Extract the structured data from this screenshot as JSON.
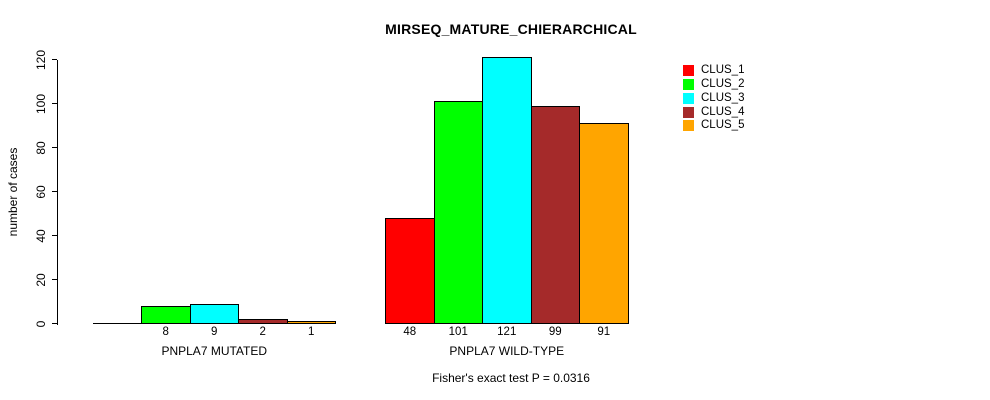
{
  "page": {
    "background": "#ffffff"
  },
  "chart_data": {
    "type": "bar",
    "title": "MIRSEQ_MATURE_CHIERARCHICAL",
    "ylabel": "number of cases",
    "xlabel": "",
    "ylim": [
      0,
      120
    ],
    "yticks": [
      0,
      20,
      40,
      60,
      80,
      100,
      120
    ],
    "grid": false,
    "legend_position": "right",
    "series": [
      {
        "name": "CLUS_1",
        "color": "#FF0000"
      },
      {
        "name": "CLUS_2",
        "color": "#00FF00"
      },
      {
        "name": "CLUS_3",
        "color": "#00FFFF"
      },
      {
        "name": "CLUS_4",
        "color": "#A52A2A"
      },
      {
        "name": "CLUS_5",
        "color": "#FFA500"
      }
    ],
    "groups": [
      {
        "label": "PNPLA7 MUTATED",
        "values": [
          0,
          8,
          9,
          2,
          1
        ],
        "bar_labels": [
          "",
          "8",
          "9",
          "2",
          "1"
        ]
      },
      {
        "label": "PNPLA7 WILD-TYPE",
        "values": [
          48,
          101,
          121,
          99,
          91
        ],
        "bar_labels": [
          "48",
          "101",
          "121",
          "99",
          "91"
        ]
      }
    ],
    "annotation": "Fisher's exact test P = 0.0316"
  }
}
